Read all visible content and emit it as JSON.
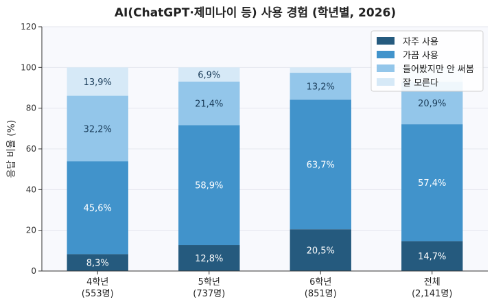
{
  "chart_data": {
    "type": "bar",
    "stacked": true,
    "title": "AI(ChatGPT·제미나이 등) 사용 경험 (학년별, 2026)",
    "ylabel": "응답 비율 (%)",
    "xlabel": "",
    "ylim": [
      0,
      120
    ],
    "yticks": [
      0,
      20,
      40,
      60,
      80,
      100,
      120
    ],
    "grid": "horizontal",
    "legend_position": "top-right",
    "categories": [
      {
        "line1": "4학년",
        "line2": "(553명)"
      },
      {
        "line1": "5학년",
        "line2": "(737명)"
      },
      {
        "line1": "6학년",
        "line2": "(851명)"
      },
      {
        "line1": "전체",
        "line2": "(2,141명)"
      }
    ],
    "series": [
      {
        "name": "자주 사용",
        "color": "#255a7e",
        "label_color": "#ffffff",
        "values": [
          8.3,
          12.8,
          20.5,
          14.7
        ],
        "labels": [
          "8,3%",
          "12,8%",
          "20,5%",
          "14,7%"
        ]
      },
      {
        "name": "가끔 사용",
        "color": "#4193cb",
        "label_color": "#ffffff",
        "values": [
          45.6,
          58.9,
          63.7,
          57.4
        ],
        "labels": [
          "45,6%",
          "58,9%",
          "63,7%",
          "57,4%"
        ]
      },
      {
        "name": "들어봤지만 안 써봄",
        "color": "#93c6ea",
        "label_color": "#1b3d5a",
        "values": [
          32.2,
          21.4,
          13.2,
          20.9
        ],
        "labels": [
          "32,2%",
          "21,4%",
          "13,2%",
          "20,9%"
        ]
      },
      {
        "name": "잘 모른다",
        "color": "#d6e9f7",
        "label_color": "#1b3d5a",
        "values": [
          13.9,
          6.9,
          2.6,
          7.0
        ],
        "labels": [
          "13,9%",
          "6,9%",
          "",
          ""
        ]
      }
    ]
  }
}
